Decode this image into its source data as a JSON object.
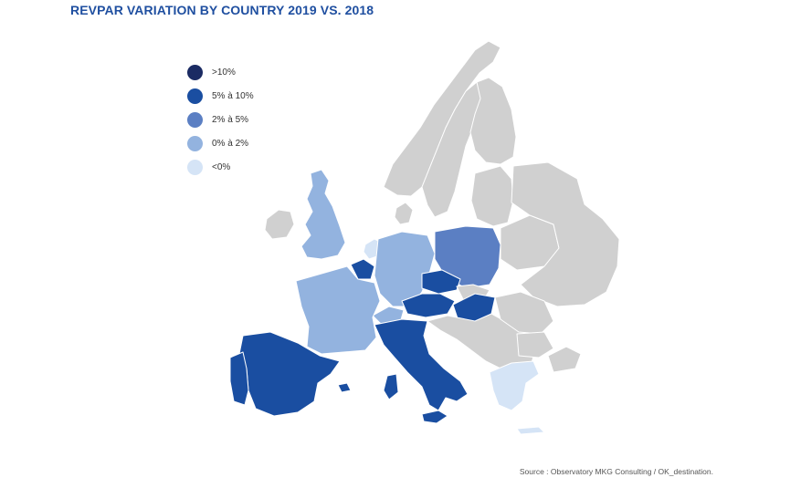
{
  "title": "REVPAR VARIATION BY COUNTRY 2019 VS. 2018",
  "legend": [
    {
      "label": ">10%",
      "color": "#1b2b63"
    },
    {
      "label": "5% à 10%",
      "color": "#1a4ea1"
    },
    {
      "label": "2% à 5%",
      "color": "#5b7fc3"
    },
    {
      "label": "0% à 2%",
      "color": "#93b3df"
    },
    {
      "label": "<0%",
      "color": "#d5e4f6"
    }
  ],
  "no_data_color": "#d0d0d0",
  "source": "Source : Observatory MKG Consulting / OK_destination."
}
